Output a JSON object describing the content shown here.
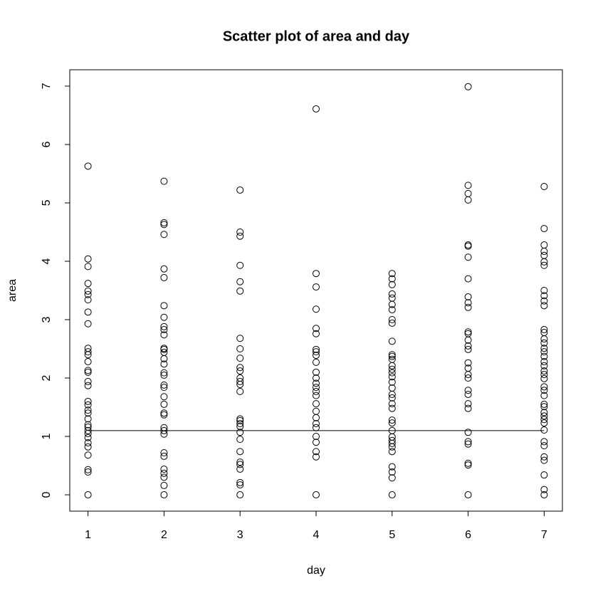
{
  "chart_data": {
    "type": "scatter",
    "title": "Scatter plot of area and day",
    "x_label": "day",
    "y_label": "area",
    "x": [
      1,
      1,
      1,
      1,
      1,
      1,
      1,
      1,
      1,
      1,
      1,
      1,
      1,
      1,
      1,
      1,
      1,
      1,
      1,
      1,
      1,
      1,
      1,
      1,
      1,
      1,
      1,
      1,
      1,
      1,
      1,
      1,
      1,
      2,
      2,
      2,
      2,
      2,
      2,
      2,
      2,
      2,
      2,
      2,
      2,
      2,
      2,
      2,
      2,
      2,
      2,
      2,
      2,
      2,
      2,
      2,
      2,
      2,
      2,
      2,
      2,
      2,
      2,
      2,
      2,
      2,
      2,
      3,
      3,
      3,
      3,
      3,
      3,
      3,
      3,
      3,
      3,
      3,
      3,
      3,
      3,
      3,
      3,
      3,
      3,
      3,
      3,
      3,
      3,
      3,
      3,
      3,
      3,
      3,
      3,
      4,
      4,
      4,
      4,
      4,
      4,
      4,
      4,
      4,
      4,
      4,
      4,
      4,
      4,
      4,
      4,
      4,
      4,
      4,
      4,
      4,
      4,
      4,
      4,
      4,
      4,
      5,
      5,
      5,
      5,
      5,
      5,
      5,
      5,
      5,
      5,
      5,
      5,
      5,
      5,
      5,
      5,
      5,
      5,
      5,
      5,
      5,
      5,
      5,
      5,
      5,
      5,
      5,
      5,
      5,
      5,
      5,
      5,
      5,
      5,
      5,
      6,
      6,
      6,
      6,
      6,
      6,
      6,
      6,
      6,
      6,
      6,
      6,
      6,
      6,
      6,
      6,
      6,
      6,
      6,
      6,
      6,
      6,
      6,
      6,
      6,
      6,
      6,
      6,
      6,
      6,
      7,
      7,
      7,
      7,
      7,
      7,
      7,
      7,
      7,
      7,
      7,
      7,
      7,
      7,
      7,
      7,
      7,
      7,
      7,
      7,
      7,
      7,
      7,
      7,
      7,
      7,
      7,
      7,
      7,
      7,
      7,
      7,
      7,
      7,
      7,
      7,
      7,
      7,
      7,
      7
    ],
    "values": [
      5.63,
      4.04,
      3.91,
      3.62,
      3.49,
      3.43,
      3.34,
      3.13,
      2.93,
      2.51,
      2.45,
      2.4,
      2.28,
      2.13,
      2.1,
      1.94,
      1.87,
      1.6,
      1.54,
      1.45,
      1.4,
      1.3,
      1.2,
      1.16,
      1.1,
      1.05,
      0.98,
      0.89,
      0.82,
      0.68,
      0.43,
      0.39,
      0,
      5.37,
      4.66,
      4.63,
      4.46,
      3.87,
      3.72,
      3.24,
      3.04,
      2.88,
      2.83,
      2.74,
      2.51,
      2.49,
      2.44,
      2.33,
      2.24,
      2.09,
      2.05,
      1.88,
      1.84,
      1.68,
      1.55,
      1.4,
      1.37,
      1.15,
      1.1,
      1.04,
      0.72,
      0.66,
      0.44,
      0.37,
      0.3,
      0.16,
      0,
      5.22,
      4.5,
      4.43,
      3.93,
      3.65,
      3.49,
      2.68,
      2.5,
      2.34,
      2.18,
      2.12,
      2,
      1.94,
      1.89,
      1.77,
      1.3,
      1.27,
      1.22,
      1.17,
      1.07,
      0.95,
      0.74,
      0.56,
      0.52,
      0.44,
      0.21,
      0.17,
      0,
      6.61,
      3.79,
      3.56,
      3.18,
      2.85,
      2.76,
      2.49,
      2.45,
      2.39,
      2.27,
      2.1,
      2,
      1.91,
      1.84,
      1.77,
      1.7,
      1.56,
      1.43,
      1.32,
      1.22,
      1.15,
      1,
      0.9,
      0.74,
      0.65,
      0,
      3.79,
      3.7,
      3.6,
      3.44,
      3.37,
      3.26,
      3.17,
      3,
      2.94,
      2.63,
      2.4,
      2.37,
      2.32,
      2.21,
      2.15,
      2.09,
      2.02,
      1.93,
      1.83,
      1.72,
      1.66,
      1.56,
      1.48,
      1.28,
      1.23,
      1.1,
      0.99,
      0.93,
      0.88,
      0.82,
      0.74,
      0.48,
      0.39,
      0.29,
      0,
      6.99,
      5.3,
      5.16,
      5.05,
      4.28,
      4.26,
      4.07,
      3.7,
      3.39,
      3.29,
      3.21,
      2.79,
      2.76,
      2.65,
      2.55,
      2.49,
      2.26,
      2.17,
      2.06,
      2,
      1.79,
      1.72,
      1.56,
      1.48,
      1.07,
      0.91,
      0.87,
      0.54,
      0.51,
      0,
      5.28,
      4.56,
      4.28,
      4.17,
      4.1,
      3.99,
      3.93,
      3.5,
      3.41,
      3.32,
      3.24,
      2.83,
      2.78,
      2.67,
      2.6,
      2.51,
      2.45,
      2.37,
      2.28,
      2.21,
      2.12,
      2.06,
      1.99,
      1.85,
      1.79,
      1.7,
      1.55,
      1.51,
      1.41,
      1.35,
      1.29,
      1.23,
      1.11,
      0.91,
      0.84,
      0.65,
      0.59,
      0.34,
      0.09,
      0
    ],
    "color": "#000000",
    "fit_line": {
      "x": [
        1,
        7
      ],
      "values": [
        1.1,
        1.1
      ]
    },
    "xlim": [
      0.76,
      7.24
    ],
    "xticks": [
      1,
      2,
      3,
      4,
      5,
      6,
      7
    ],
    "ylim": [
      -0.28,
      7.28
    ],
    "yticks": [
      0,
      1,
      2,
      3,
      4,
      5,
      6,
      7
    ]
  }
}
